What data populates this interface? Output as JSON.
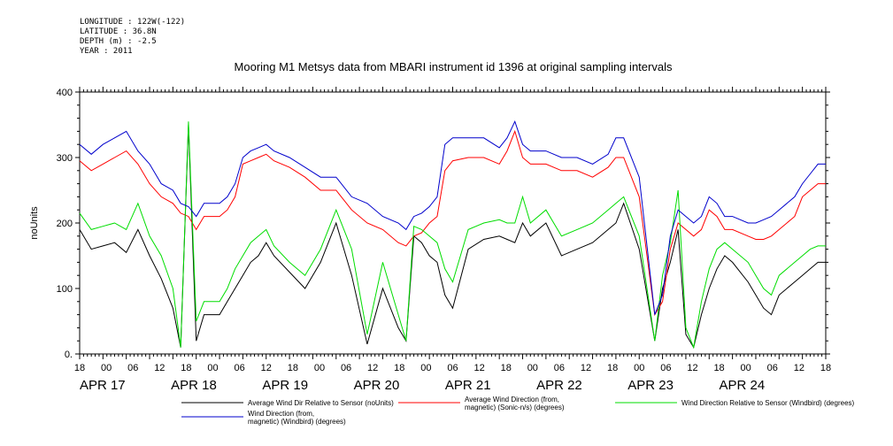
{
  "header": {
    "lines": [
      "LONGITUDE : 122W(-122)",
      "LATITUDE : 36.8N",
      "DEPTH (m) : -2.5",
      "YEAR : 2011"
    ]
  },
  "chart_data": {
    "type": "line",
    "title": "Mooring M1 Metsys data from MBARI instrument id 1396 at original sampling intervals",
    "xlabel": "",
    "ylabel": "noUnits",
    "ylim": [
      0,
      400
    ],
    "yticks": [
      "0.",
      "100",
      "200",
      "300",
      "400"
    ],
    "xlim_hours": [
      0,
      192
    ],
    "x_tick_labels": [
      "18",
      "00",
      "06",
      "12",
      "18",
      "00",
      "06",
      "12",
      "18",
      "00",
      "06",
      "12",
      "18",
      "00",
      "06",
      "12",
      "18",
      "00",
      "06",
      "12",
      "18",
      "00",
      "06",
      "12",
      "18",
      "00",
      "06",
      "12",
      "18"
    ],
    "date_labels": [
      "APR 17",
      "APR 18",
      "APR 19",
      "APR 20",
      "APR 21",
      "APR 22",
      "APR 23",
      "APR 24"
    ],
    "x_axis_note": "x values are hours after 2011-04-16 18:00",
    "grid": false,
    "legend_position": "bottom",
    "series": [
      {
        "name": "Average Wind Dir Relative to Sensor (noUnits)",
        "color": "#000000",
        "x": [
          0,
          3,
          6,
          9,
          12,
          15,
          18,
          21,
          24,
          26,
          28,
          30,
          32,
          36,
          38,
          40,
          42,
          44,
          46,
          48,
          50,
          54,
          58,
          62,
          66,
          70,
          74,
          78,
          82,
          84,
          86,
          88,
          90,
          92,
          94,
          96,
          100,
          104,
          108,
          110,
          112,
          114,
          116,
          120,
          124,
          128,
          132,
          136,
          138,
          140,
          144,
          148,
          150,
          152,
          154,
          156,
          158,
          160,
          162,
          164,
          166,
          168,
          172,
          174,
          176,
          178,
          180,
          184,
          186,
          188,
          190,
          192
        ],
        "y": [
          190,
          160,
          165,
          170,
          155,
          190,
          150,
          115,
          70,
          10,
          350,
          20,
          60,
          60,
          80,
          100,
          120,
          140,
          150,
          170,
          150,
          125,
          100,
          140,
          200,
          120,
          15,
          100,
          40,
          20,
          180,
          170,
          150,
          140,
          90,
          70,
          160,
          175,
          180,
          175,
          170,
          200,
          180,
          200,
          150,
          160,
          170,
          190,
          200,
          230,
          160,
          20,
          100,
          140,
          190,
          30,
          10,
          60,
          100,
          130,
          150,
          140,
          110,
          90,
          70,
          60,
          90,
          110,
          120,
          130,
          140,
          140
        ]
      },
      {
        "name": "Average Wind Direction (from, magnetic) (Sonic-n/s) (degrees)",
        "color": "#ff0000",
        "x": [
          0,
          3,
          6,
          9,
          12,
          15,
          18,
          21,
          24,
          26,
          28,
          30,
          32,
          36,
          38,
          40,
          42,
          44,
          46,
          48,
          50,
          54,
          58,
          62,
          66,
          70,
          74,
          78,
          82,
          84,
          86,
          88,
          90,
          92,
          94,
          96,
          100,
          104,
          108,
          110,
          112,
          114,
          116,
          120,
          124,
          128,
          132,
          136,
          138,
          140,
          144,
          148,
          150,
          152,
          154,
          156,
          158,
          160,
          162,
          164,
          166,
          168,
          172,
          174,
          176,
          178,
          180,
          184,
          186,
          188,
          190,
          192
        ],
        "y": [
          295,
          280,
          290,
          300,
          310,
          290,
          260,
          240,
          230,
          215,
          210,
          190,
          210,
          210,
          220,
          240,
          290,
          295,
          300,
          305,
          295,
          285,
          270,
          250,
          250,
          220,
          200,
          190,
          170,
          165,
          180,
          185,
          200,
          210,
          280,
          295,
          300,
          300,
          290,
          310,
          340,
          300,
          290,
          290,
          280,
          280,
          270,
          285,
          300,
          300,
          240,
          60,
          80,
          160,
          200,
          190,
          180,
          190,
          220,
          210,
          190,
          190,
          180,
          175,
          175,
          180,
          190,
          210,
          240,
          250,
          260,
          260
        ]
      },
      {
        "name": "Wind Direction Relative to Sensor (Windbird) (degrees)",
        "color": "#00dd00",
        "x": [
          0,
          3,
          6,
          9,
          12,
          15,
          18,
          21,
          24,
          26,
          28,
          30,
          32,
          36,
          38,
          40,
          42,
          44,
          46,
          48,
          50,
          54,
          58,
          62,
          66,
          70,
          74,
          78,
          82,
          84,
          86,
          88,
          90,
          92,
          94,
          96,
          100,
          104,
          108,
          110,
          112,
          114,
          116,
          120,
          124,
          128,
          132,
          136,
          138,
          140,
          144,
          148,
          150,
          152,
          154,
          156,
          158,
          160,
          162,
          164,
          166,
          168,
          172,
          174,
          176,
          178,
          180,
          184,
          186,
          188,
          190,
          192
        ],
        "y": [
          215,
          190,
          195,
          200,
          190,
          230,
          180,
          150,
          100,
          10,
          355,
          50,
          80,
          80,
          100,
          130,
          150,
          170,
          180,
          190,
          165,
          140,
          120,
          160,
          220,
          160,
          30,
          140,
          60,
          20,
          195,
          190,
          180,
          170,
          130,
          110,
          190,
          200,
          205,
          200,
          200,
          240,
          200,
          220,
          180,
          190,
          200,
          220,
          230,
          240,
          180,
          20,
          120,
          170,
          250,
          40,
          10,
          80,
          130,
          160,
          170,
          160,
          140,
          120,
          100,
          90,
          120,
          140,
          150,
          160,
          165,
          165
        ]
      },
      {
        "name": "Wind Direction (from, magnetic) (Windbird) (degrees)",
        "color": "#0000cc",
        "x": [
          0,
          3,
          6,
          9,
          12,
          15,
          18,
          21,
          24,
          26,
          28,
          30,
          32,
          36,
          38,
          40,
          42,
          44,
          46,
          48,
          50,
          54,
          58,
          62,
          66,
          70,
          74,
          78,
          82,
          84,
          86,
          88,
          90,
          92,
          94,
          96,
          100,
          104,
          108,
          110,
          112,
          114,
          116,
          120,
          124,
          128,
          132,
          136,
          138,
          140,
          144,
          148,
          150,
          152,
          154,
          156,
          158,
          160,
          162,
          164,
          166,
          168,
          172,
          174,
          176,
          178,
          180,
          184,
          186,
          188,
          190,
          192
        ],
        "y": [
          320,
          305,
          320,
          330,
          340,
          310,
          290,
          260,
          250,
          230,
          225,
          210,
          230,
          230,
          240,
          260,
          300,
          310,
          315,
          320,
          310,
          300,
          285,
          270,
          270,
          240,
          230,
          210,
          200,
          190,
          210,
          215,
          225,
          240,
          320,
          330,
          330,
          330,
          315,
          330,
          355,
          320,
          310,
          310,
          300,
          300,
          290,
          305,
          330,
          330,
          270,
          60,
          90,
          180,
          220,
          210,
          200,
          210,
          240,
          230,
          210,
          210,
          200,
          200,
          205,
          210,
          220,
          240,
          260,
          275,
          290,
          290
        ]
      }
    ]
  },
  "legend": {
    "entries": [
      {
        "label_lines": [
          "Average Wind Dir Relative to Sensor (noUnits)"
        ],
        "color": "#000000"
      },
      {
        "label_lines": [
          "Average Wind Direction (from,",
          "magnetic) (Sonic-n/s) (degrees)"
        ],
        "color": "#ff0000"
      },
      {
        "label_lines": [
          "Wind Direction Relative to Sensor (Windbird) (degrees)"
        ],
        "color": "#00dd00"
      },
      {
        "label_lines": [
          "Wind Direction (from,",
          "magnetic) (Windbird) (degrees)"
        ],
        "color": "#0000cc"
      }
    ]
  }
}
